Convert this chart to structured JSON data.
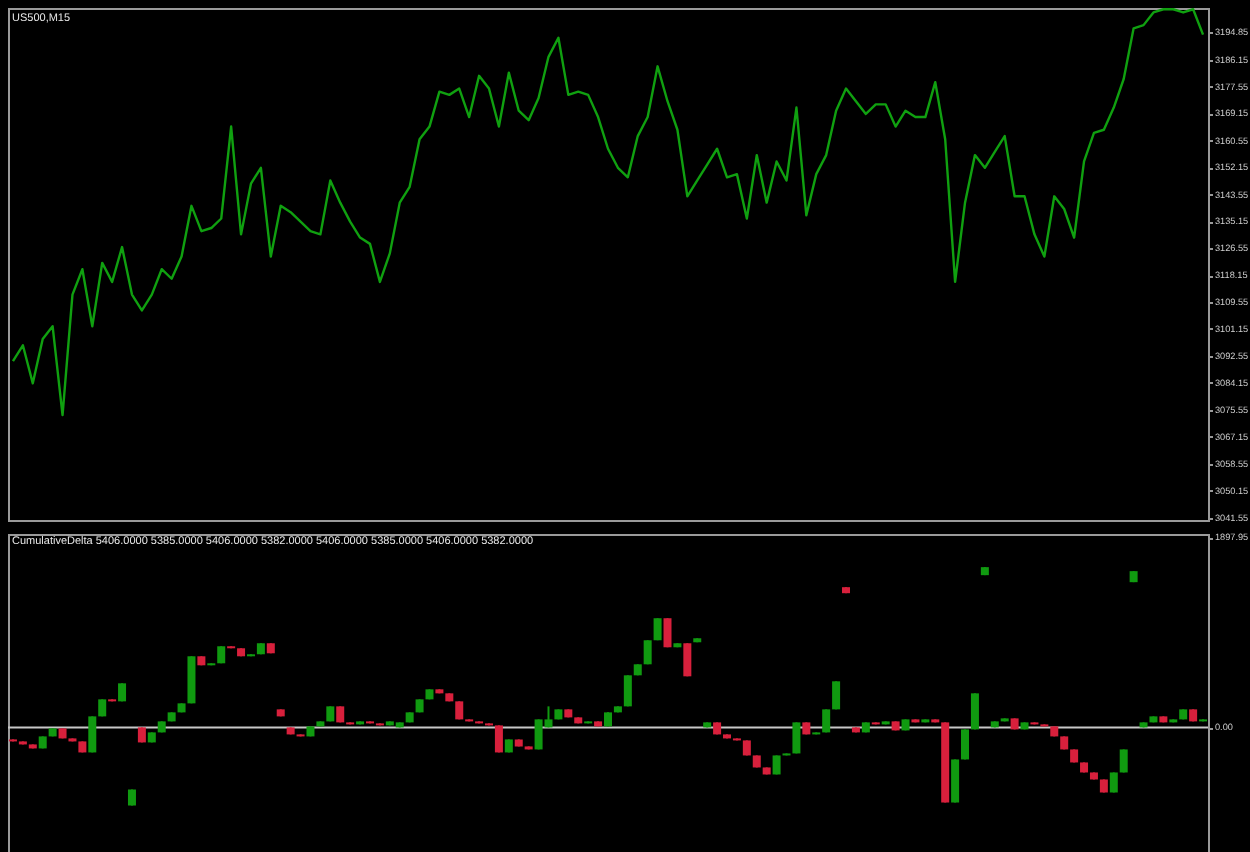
{
  "chart_data": [
    {
      "type": "line",
      "title": "US500,M15",
      "tick_labels": "y",
      "categories": [
        null,
        null,
        null,
        null,
        null,
        null,
        null,
        null,
        null,
        null,
        null,
        null,
        null,
        null,
        null,
        null,
        null,
        null,
        null,
        null,
        null,
        null,
        null,
        null,
        null,
        null,
        null,
        null,
        null,
        null,
        null,
        null,
        null,
        null,
        null,
        null,
        null,
        null,
        null,
        null,
        null,
        null,
        null,
        null,
        null,
        null,
        null,
        null,
        null,
        null,
        null,
        null,
        null,
        null,
        null,
        null,
        null,
        null,
        null,
        null,
        null,
        null,
        null,
        null,
        null,
        null,
        null,
        null,
        null,
        null,
        null,
        null,
        null,
        null,
        null,
        null,
        null,
        null,
        null,
        null,
        null,
        null,
        null,
        null,
        null,
        null,
        null,
        null,
        null,
        null,
        null,
        null,
        null,
        null,
        null,
        null,
        null,
        null,
        null,
        null,
        null,
        null,
        null,
        null,
        null,
        null,
        null,
        null,
        null,
        null,
        null,
        null,
        null,
        null,
        null,
        null,
        null,
        null,
        null,
        null,
        null
      ],
      "series": [
        {
          "color": "#10a010",
          "values": [
            3091,
            3096,
            3084,
            3098,
            3102,
            3074,
            3112,
            3120,
            3102,
            3122,
            3116,
            3127,
            3112,
            3107,
            3112,
            3120,
            3117,
            3124,
            3140,
            3132,
            3133,
            3136,
            3165,
            3131,
            3147,
            3152,
            3124,
            3140,
            3138,
            3135,
            3132,
            3131,
            3148,
            3141,
            3135,
            3130,
            3128,
            3116,
            3125,
            3141,
            3146,
            3161,
            3165,
            3176,
            3175,
            3177,
            3168,
            3181,
            3177,
            3165,
            3182,
            3170,
            3167,
            3174,
            3187,
            3193,
            3175,
            3176,
            3175,
            3168,
            3158,
            3152,
            3149,
            3162,
            3168,
            3184,
            3173,
            3164,
            3143,
            3148,
            3153,
            3158,
            3149,
            3150,
            3136,
            3156,
            3141,
            3154,
            3148,
            3171,
            3137,
            3150,
            3156,
            3170,
            3177,
            3173,
            3169,
            3172,
            3172,
            3165,
            3170,
            3168,
            3168,
            3179,
            3161,
            3116,
            3141,
            3156,
            3152,
            3157,
            3162,
            3143,
            3143,
            3131,
            3124,
            3143,
            3139,
            3130,
            3154,
            3163,
            3164,
            3171,
            3180,
            3196,
            3197,
            3201,
            3202,
            3202,
            3201,
            3202,
            3194
          ]
        }
      ],
      "ylim": [
        3040.9,
        3202.4
      ],
      "yticks": [
        3194.85,
        3186.15,
        3177.55,
        3169.15,
        3160.55,
        3152.15,
        3143.55,
        3135.15,
        3126.55,
        3118.15,
        3109.55,
        3101.15,
        3092.55,
        3084.15,
        3075.55,
        3067.15,
        3058.55,
        3050.15,
        3041.55
      ]
    },
    {
      "type": "candlestick",
      "title": "CumulativeDelta 5406.0000 5385.0000 5406.0000 5382.0000 5406.0000 5385.0000 5406.0000 5382.0000",
      "tick_labels": "y",
      "categories": [
        null,
        null,
        null,
        null,
        null,
        null,
        null,
        null,
        null,
        null,
        null,
        null,
        null,
        null,
        null,
        null,
        null,
        null,
        null,
        null,
        null,
        null,
        null,
        null,
        null,
        null,
        null,
        null,
        null,
        null,
        null,
        null,
        null,
        null,
        null,
        null,
        null,
        null,
        null,
        null,
        null,
        null,
        null,
        null,
        null,
        null,
        null,
        null,
        null,
        null,
        null,
        null,
        null,
        null,
        null,
        null,
        null,
        null,
        null,
        null,
        null,
        null,
        null,
        null,
        null,
        null,
        null,
        null,
        null,
        null,
        null,
        null,
        null,
        null,
        null,
        null,
        null,
        null,
        null,
        null,
        null,
        null,
        null,
        null,
        null,
        null,
        null,
        null,
        null,
        null,
        null,
        null,
        null,
        null,
        null,
        null,
        null,
        null,
        null,
        null,
        null,
        null,
        null,
        null,
        null,
        null,
        null,
        null,
        null,
        null,
        null,
        null,
        null,
        null,
        null,
        null,
        null,
        null,
        null,
        null,
        null
      ],
      "ohlc": [
        [
          -120,
          -120,
          -140,
          -140
        ],
        [
          -140,
          -140,
          -170,
          -170
        ],
        [
          -170,
          -170,
          -210,
          -210
        ],
        [
          -210,
          -90,
          -210,
          -90
        ],
        [
          -90,
          -10,
          -90,
          -10
        ],
        [
          -10,
          -10,
          -110,
          -110
        ],
        [
          -110,
          -110,
          -140,
          -140
        ],
        [
          -140,
          -140,
          -250,
          -250
        ],
        [
          -250,
          110,
          -250,
          110
        ],
        [
          110,
          280,
          110,
          280
        ],
        [
          280,
          280,
          260,
          260
        ],
        [
          260,
          440,
          260,
          440
        ],
        [
          -780,
          -620,
          -780,
          -620
        ],
        [
          0,
          0,
          -150,
          -150
        ],
        [
          -150,
          -50,
          -150,
          -50
        ],
        [
          -50,
          60,
          -50,
          60
        ],
        [
          60,
          150,
          60,
          150
        ],
        [
          150,
          240,
          150,
          240
        ],
        [
          240,
          710,
          240,
          710
        ],
        [
          710,
          710,
          620,
          620
        ],
        [
          620,
          640,
          620,
          640
        ],
        [
          640,
          810,
          640,
          810
        ],
        [
          810,
          810,
          790,
          790
        ],
        [
          790,
          790,
          710,
          710
        ],
        [
          710,
          730,
          710,
          730
        ],
        [
          730,
          840,
          730,
          840
        ],
        [
          840,
          840,
          740,
          740
        ],
        [
          180,
          180,
          110,
          110
        ],
        [
          0,
          0,
          -70,
          -70
        ],
        [
          -70,
          -70,
          -90,
          -90
        ],
        [
          -90,
          10,
          -90,
          10
        ],
        [
          10,
          60,
          10,
          60
        ],
        [
          60,
          210,
          60,
          210
        ],
        [
          210,
          210,
          50,
          50
        ],
        [
          50,
          50,
          30,
          30
        ],
        [
          30,
          60,
          30,
          60
        ],
        [
          60,
          60,
          40,
          40
        ],
        [
          40,
          40,
          20,
          20
        ],
        [
          20,
          60,
          20,
          60
        ],
        [
          0,
          50,
          0,
          50
        ],
        [
          50,
          150,
          50,
          150
        ],
        [
          150,
          280,
          150,
          280
        ],
        [
          280,
          380,
          280,
          380
        ],
        [
          380,
          380,
          340,
          340
        ],
        [
          340,
          340,
          260,
          260
        ],
        [
          260,
          260,
          80,
          80
        ],
        [
          80,
          80,
          60,
          60
        ],
        [
          60,
          60,
          40,
          40
        ],
        [
          40,
          40,
          20,
          20
        ],
        [
          20,
          20,
          -250,
          -250
        ],
        [
          -250,
          -120,
          -250,
          -120
        ],
        [
          -120,
          -120,
          -190,
          -190
        ],
        [
          -190,
          -190,
          -220,
          -220
        ],
        [
          -220,
          80,
          -220,
          80
        ],
        [
          0,
          210,
          0,
          80
        ],
        [
          80,
          180,
          80,
          180
        ],
        [
          180,
          180,
          100,
          100
        ],
        [
          100,
          100,
          40,
          40
        ],
        [
          40,
          60,
          40,
          60
        ],
        [
          60,
          60,
          10,
          10
        ],
        [
          10,
          150,
          10,
          150
        ],
        [
          150,
          210,
          150,
          210
        ],
        [
          210,
          520,
          210,
          520
        ],
        [
          520,
          630,
          520,
          630
        ],
        [
          630,
          870,
          630,
          870
        ],
        [
          870,
          1090,
          870,
          1090
        ],
        [
          1090,
          1090,
          800,
          800
        ],
        [
          800,
          840,
          800,
          840
        ],
        [
          840,
          840,
          510,
          510
        ],
        [
          850,
          890,
          850,
          890
        ],
        [
          0,
          50,
          0,
          50
        ],
        [
          50,
          50,
          -70,
          -70
        ],
        [
          -70,
          -70,
          -110,
          -110
        ],
        [
          -110,
          -110,
          -130,
          -130
        ],
        [
          -130,
          -130,
          -280,
          -280
        ],
        [
          -280,
          -280,
          -400,
          -400
        ],
        [
          -400,
          -400,
          -470,
          -470
        ],
        [
          -470,
          -280,
          -470,
          -280
        ],
        [
          -280,
          -260,
          -280,
          -260
        ],
        [
          -260,
          50,
          -260,
          50
        ],
        [
          50,
          50,
          -70,
          -70
        ],
        [
          -70,
          -50,
          -70,
          -50
        ],
        [
          -50,
          180,
          -50,
          180
        ],
        [
          180,
          460,
          180,
          460
        ],
        [
          1400,
          1400,
          1340,
          1340
        ],
        [
          0,
          0,
          -50,
          -50
        ],
        [
          -50,
          50,
          -50,
          50
        ],
        [
          50,
          50,
          30,
          30
        ],
        [
          30,
          60,
          30,
          60
        ],
        [
          60,
          60,
          -30,
          -30
        ],
        [
          -30,
          80,
          -30,
          80
        ],
        [
          80,
          80,
          50,
          50
        ],
        [
          50,
          80,
          50,
          80
        ],
        [
          80,
          80,
          50,
          50
        ],
        [
          50,
          50,
          -750,
          -750
        ],
        [
          -750,
          -320,
          -750,
          -320
        ],
        [
          -320,
          -20,
          -320,
          -20
        ],
        [
          -20,
          340,
          -20,
          340
        ],
        [
          1520,
          1600,
          1520,
          1600
        ],
        [
          0,
          60,
          0,
          60
        ],
        [
          60,
          90,
          60,
          90
        ],
        [
          90,
          90,
          -20,
          -20
        ],
        [
          -20,
          50,
          -20,
          50
        ],
        [
          50,
          50,
          30,
          30
        ],
        [
          30,
          30,
          10,
          10
        ],
        [
          10,
          10,
          -90,
          -90
        ],
        [
          -90,
          -90,
          -220,
          -220
        ],
        [
          -220,
          -220,
          -350,
          -350
        ],
        [
          -350,
          -350,
          -450,
          -450
        ],
        [
          -450,
          -450,
          -520,
          -520
        ],
        [
          -520,
          -520,
          -650,
          -650
        ],
        [
          -650,
          -450,
          -650,
          -450
        ],
        [
          -450,
          -220,
          -450,
          -220
        ],
        [
          1450,
          1560,
          1450,
          1560
        ],
        [
          0,
          50,
          0,
          50
        ],
        [
          50,
          110,
          50,
          110
        ],
        [
          110,
          110,
          50,
          50
        ],
        [
          50,
          80,
          50,
          80
        ],
        [
          80,
          180,
          80,
          180
        ],
        [
          180,
          180,
          60,
          60
        ],
        [
          60,
          80,
          60,
          80
        ]
      ],
      "colors": [
        "#d8203c",
        "#d8203c",
        "#d8203c",
        "#109a10",
        "#109a10",
        "#d8203c",
        "#d8203c",
        "#d8203c",
        "#109a10",
        "#109a10",
        "#d8203c",
        "#109a10",
        "#109a10",
        "#d8203c",
        "#109a10",
        "#109a10",
        "#109a10",
        "#109a10",
        "#109a10",
        "#d8203c",
        "#109a10",
        "#109a10",
        "#d8203c",
        "#d8203c",
        "#109a10",
        "#109a10",
        "#d8203c",
        "#d8203c",
        "#d8203c",
        "#d8203c",
        "#109a10",
        "#109a10",
        "#109a10",
        "#d8203c",
        "#d8203c",
        "#109a10",
        "#d8203c",
        "#d8203c",
        "#109a10",
        "#109a10",
        "#109a10",
        "#109a10",
        "#109a10",
        "#d8203c",
        "#d8203c",
        "#d8203c",
        "#d8203c",
        "#d8203c",
        "#d8203c",
        "#d8203c",
        "#109a10",
        "#d8203c",
        "#d8203c",
        "#109a10",
        "#109a10",
        "#109a10",
        "#d8203c",
        "#d8203c",
        "#109a10",
        "#d8203c",
        "#109a10",
        "#109a10",
        "#109a10",
        "#109a10",
        "#109a10",
        "#109a10",
        "#d8203c",
        "#109a10",
        "#d8203c",
        "#109a10",
        "#109a10",
        "#d8203c",
        "#d8203c",
        "#d8203c",
        "#d8203c",
        "#d8203c",
        "#d8203c",
        "#109a10",
        "#109a10",
        "#109a10",
        "#d8203c",
        "#109a10",
        "#109a10",
        "#109a10",
        "#d8203c",
        "#d8203c",
        "#109a10",
        "#d8203c",
        "#109a10",
        "#d8203c",
        "#109a10",
        "#d8203c",
        "#109a10",
        "#d8203c",
        "#d8203c",
        "#109a10",
        "#109a10",
        "#109a10",
        "#109a10",
        "#109a10",
        "#109a10",
        "#d8203c",
        "#109a10",
        "#d8203c",
        "#d8203c",
        "#d8203c",
        "#d8203c",
        "#d8203c",
        "#d8203c",
        "#d8203c",
        "#d8203c",
        "#109a10",
        "#109a10",
        "#109a10",
        "#109a10",
        "#109a10",
        "#d8203c",
        "#109a10",
        "#109a10",
        "#d8203c",
        "#109a10"
      ],
      "ylim": [
        -1344,
        1931
      ],
      "yticks": [
        1897.95,
        {
          "value": 0,
          "label": "0.00"
        }
      ],
      "ref_lines": [
        {
          "axis": "y",
          "value": 0,
          "color": "#c8c8c8"
        }
      ]
    }
  ]
}
